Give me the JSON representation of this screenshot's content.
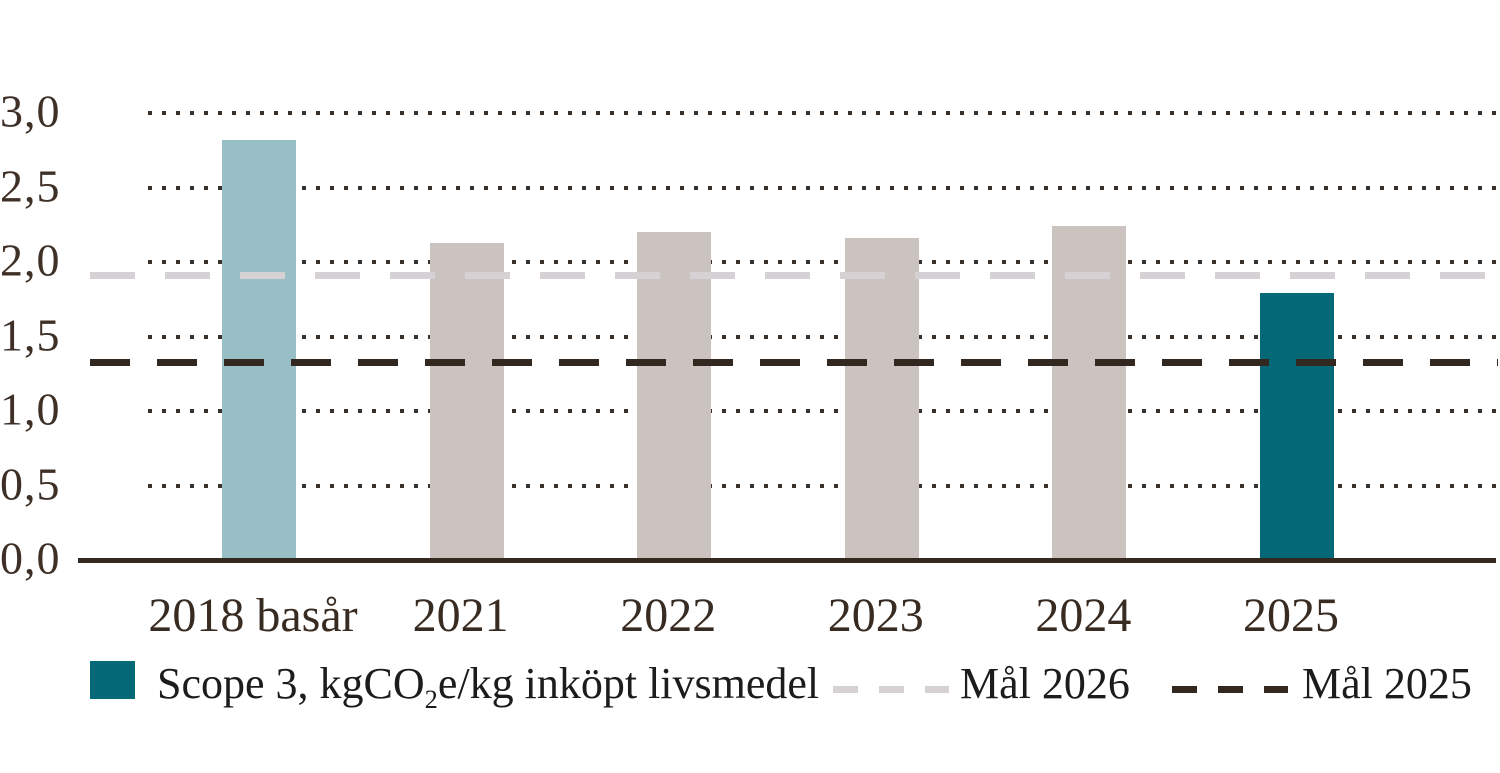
{
  "chart_data": {
    "type": "bar",
    "categories": [
      "2018 basår",
      "2021",
      "2022",
      "2023",
      "2024",
      "2025"
    ],
    "values": [
      2.82,
      2.13,
      2.2,
      2.16,
      2.24,
      1.79
    ],
    "bar_colors": [
      "#98bfc5",
      "#cac3c0",
      "#cac3c0",
      "#cac3c0",
      "#cac3c0",
      "#046877"
    ],
    "title": "",
    "xlabel": "",
    "ylabel": "",
    "ylim": [
      0.0,
      3.0
    ],
    "yticks": [
      {
        "value": 0.0,
        "label": "0,0"
      },
      {
        "value": 0.5,
        "label": "0,5"
      },
      {
        "value": 1.0,
        "label": "1,0"
      },
      {
        "value": 1.5,
        "label": "1,5"
      },
      {
        "value": 2.0,
        "label": "2,0"
      },
      {
        "value": 2.5,
        "label": "2,5"
      },
      {
        "value": 3.0,
        "label": "3,0"
      }
    ],
    "grid": "dotted horizontal lines at each 0,5 step",
    "target_lines": [
      {
        "name": "Mål 2026",
        "value": 1.91,
        "color": "#d5d1d5",
        "style": "dashed"
      },
      {
        "name": "Mål 2025",
        "value": 1.33,
        "color": "#32281f",
        "style": "dashed"
      }
    ],
    "legend_position": "bottom"
  },
  "legend": {
    "series_label_pre": "Scope 3, kgCO",
    "series_label_sub": "2",
    "series_label_post": "e/kg inköpt livsmedel",
    "series_swatch_color": "#046877",
    "mal_2026_label": "Mål 2026",
    "mal_2025_label": "Mål 2025"
  },
  "colors": {
    "background": "#ffffff",
    "axis_line": "#332921",
    "grid_dots": "#39312c",
    "ytick_text": "#3e3027",
    "xtick_text": "#382b22",
    "legend_text": "#1d1b1c",
    "bar_base_year": "#98bfc5",
    "bar_default": "#cac3c0",
    "bar_current": "#046877",
    "target_2026_line": "#d5d1d5",
    "target_2025_line": "#32281f"
  }
}
